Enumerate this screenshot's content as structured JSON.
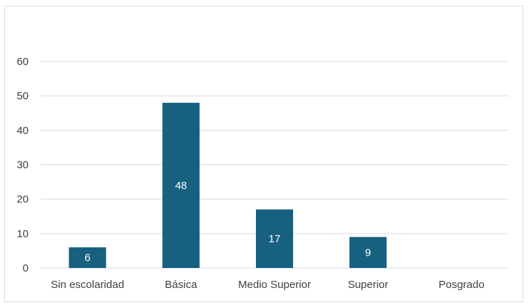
{
  "chart_data": {
    "type": "bar",
    "categories": [
      "Sin escolaridad",
      "Básica",
      "Medio Superior",
      "Superior",
      "Posgrado"
    ],
    "values": [
      6,
      48,
      17,
      9,
      0
    ],
    "data_labels": [
      "6",
      "48",
      "17",
      "9",
      ""
    ],
    "ylim": [
      0,
      60
    ],
    "yticks": [
      0,
      10,
      20,
      30,
      40,
      50,
      60
    ],
    "grid": true,
    "legend": "none",
    "bar_color": "#17607f",
    "grid_color": "#d9d9d9"
  }
}
